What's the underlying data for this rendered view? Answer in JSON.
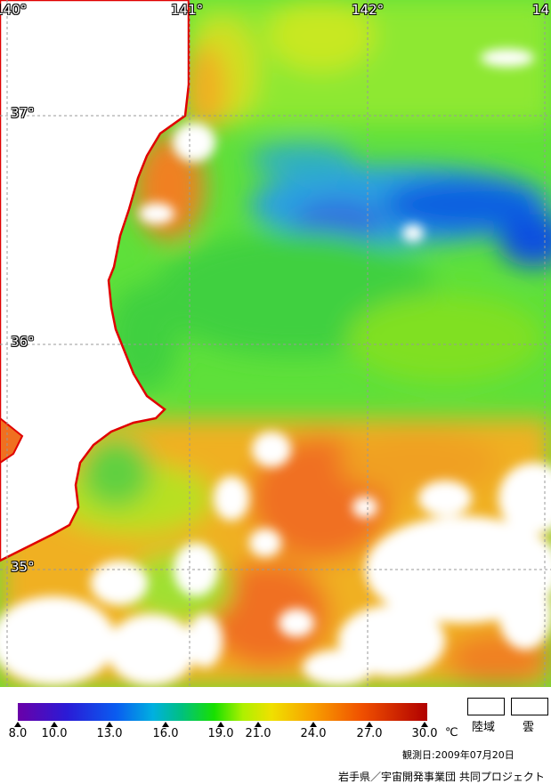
{
  "map": {
    "lon_labels": [
      "140°",
      "141°",
      "142°",
      "14"
    ],
    "lat_labels": [
      "37°",
      "36°",
      "35°"
    ]
  },
  "legend": {
    "ticks": [
      "8.0",
      "10.0",
      "13.0",
      "16.0",
      "19.0",
      "21.0",
      "24.0",
      "27.0",
      "30.0"
    ],
    "unit": "℃",
    "land_label": "陸域",
    "cloud_label": "雲",
    "observation_date": "観測日:2009年07月20日",
    "credit": "岩手県／宇宙開発事業団 共同プロジェクト"
  },
  "colors": {
    "coastline": "#e00000",
    "land": "#ffffff",
    "cloud": "#ffffff",
    "grid": "#999999"
  }
}
